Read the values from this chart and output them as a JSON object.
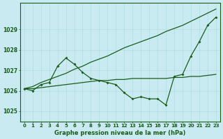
{
  "title": "Graphe pression niveau de la mer (hPa)",
  "bg_color": "#c8eaf0",
  "grid_color": "#b0dce4",
  "line_color": "#1a5c1a",
  "x_ticks": [
    0,
    1,
    2,
    3,
    4,
    5,
    6,
    7,
    8,
    9,
    10,
    11,
    12,
    13,
    14,
    15,
    16,
    17,
    18,
    19,
    20,
    21,
    22,
    23
  ],
  "ylim": [
    1024.5,
    1030.3
  ],
  "yticks": [
    1025,
    1026,
    1027,
    1028,
    1029
  ],
  "hours": [
    0,
    1,
    2,
    3,
    4,
    5,
    6,
    7,
    8,
    9,
    10,
    11,
    12,
    13,
    14,
    15,
    16,
    17,
    18,
    19,
    20,
    21,
    22,
    23
  ],
  "line_main": [
    1026.1,
    1026.0,
    1026.3,
    1026.4,
    1027.2,
    1027.6,
    1027.3,
    1026.9,
    1026.6,
    1026.5,
    1026.4,
    1026.3,
    1025.9,
    1025.6,
    1025.7,
    1025.6,
    1025.6,
    1025.3,
    1026.7,
    1026.8,
    1027.7,
    1028.4,
    1029.2,
    1029.6
  ],
  "line_upper": [
    1026.1,
    1026.2,
    1026.4,
    1026.55,
    1026.7,
    1026.85,
    1027.05,
    1027.2,
    1027.4,
    1027.55,
    1027.7,
    1027.9,
    1028.1,
    1028.25,
    1028.4,
    1028.55,
    1028.7,
    1028.9,
    1029.05,
    1029.2,
    1029.4,
    1029.6,
    1029.8,
    1030.0
  ],
  "line_lower": [
    1026.1,
    1026.1,
    1026.15,
    1026.2,
    1026.25,
    1026.3,
    1026.35,
    1026.4,
    1026.45,
    1026.5,
    1026.5,
    1026.55,
    1026.55,
    1026.6,
    1026.6,
    1026.6,
    1026.6,
    1026.6,
    1026.65,
    1026.65,
    1026.7,
    1026.7,
    1026.75,
    1026.8
  ]
}
